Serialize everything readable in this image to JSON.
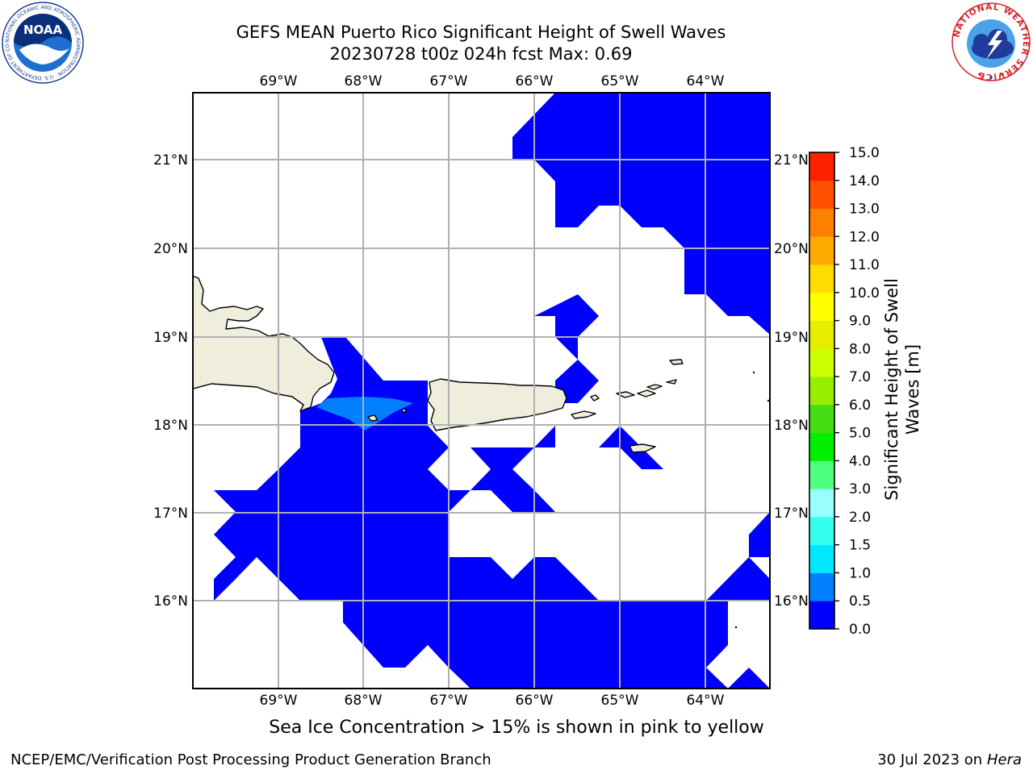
{
  "header": {
    "title_line1": "GEFS MEAN Puerto Rico Significant Height of Swell Waves",
    "title_line2": "20230728 t00z 024h fcst   Max: 0.69"
  },
  "logos": {
    "left": {
      "name": "NOAA",
      "text": "NOAA",
      "ring_text": "NATIONAL OCEANIC AND ATMOSPHERIC ADMINISTRATION · U.S. DEPARTMENT OF COMMERCE"
    },
    "right": {
      "name": "National Weather Service",
      "ring_text": "NATIONAL WEATHER SERVICE"
    }
  },
  "map": {
    "lon_labels": [
      "69°W",
      "68°W",
      "67°W",
      "66°W",
      "65°W",
      "64°W"
    ],
    "lat_labels": [
      "21°N",
      "20°N",
      "19°N",
      "18°N",
      "17°N",
      "16°N"
    ],
    "colors": {
      "land": "#efeddc",
      "coast": "#000000",
      "grid": "#b0b0b0",
      "swell_low": "#0000ff",
      "swell_mid": "#0080ff"
    }
  },
  "colorbar": {
    "label": "Significant Height of Swell Waves [m]",
    "ticks": [
      "0.0",
      "0.5",
      "1.0",
      "1.5",
      "2.0",
      "3.0",
      "4.0",
      "5.0",
      "6.0",
      "7.0",
      "8.0",
      "9.0",
      "10.0",
      "11.0",
      "12.0",
      "13.0",
      "14.0",
      "15.0"
    ],
    "colors": [
      "#0000ff",
      "#0080ff",
      "#00e8ff",
      "#33ffee",
      "#99ffff",
      "#4dff80",
      "#00ee00",
      "#44dd11",
      "#99ee00",
      "#ccff00",
      "#e6ee00",
      "#ffff00",
      "#ffdd00",
      "#ffaa00",
      "#ff8000",
      "#ff5000",
      "#ff2000"
    ]
  },
  "caption": "Sea Ice Concentration > 15% is shown in pink to yellow",
  "footer": {
    "left": "NCEP/EMC/Verification Post Processing Product Generation Branch",
    "right_date": "30 Jul 2023 on ",
    "right_host": "Hera"
  }
}
